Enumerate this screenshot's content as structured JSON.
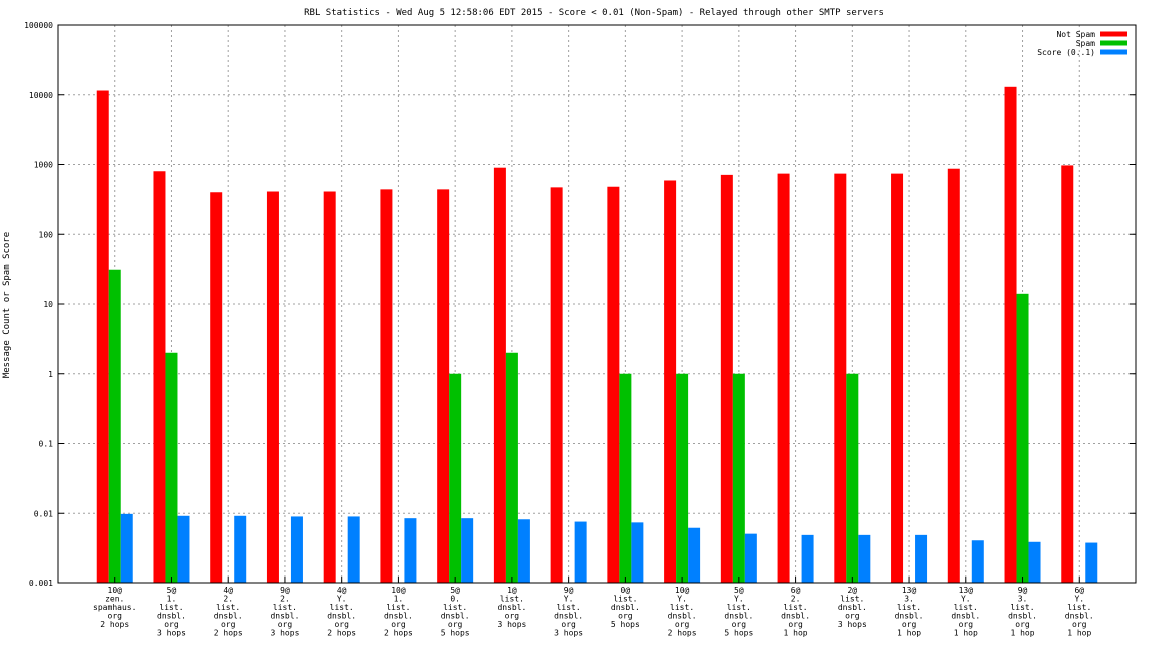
{
  "chart_data": {
    "type": "bar",
    "title": "RBL Statistics - Wed Aug  5 12:58:06 EDT 2015 - Score < 0.01 (Non-Spam) - Relayed through other SMTP servers",
    "xlabel": "",
    "ylabel": "Message Count or Spam Score",
    "yscale": "log",
    "ylim": [
      0.001,
      100000
    ],
    "yticks": [
      "0.001",
      "0.01",
      "0.1",
      "1",
      "10",
      "100",
      "1000",
      "10000",
      "100000"
    ],
    "grid": true,
    "legend_position": "top-right",
    "categories": [
      [
        "10@",
        "zen.",
        "spamhaus.",
        "org",
        "2 hops"
      ],
      [
        "5@",
        "1.",
        "list.",
        "dnsbl.",
        "org",
        "3 hops"
      ],
      [
        "4@",
        "2.",
        "list.",
        "dnsbl.",
        "org",
        "2 hops"
      ],
      [
        "9@",
        "2.",
        "list.",
        "dnsbl.",
        "org",
        "3 hops"
      ],
      [
        "4@",
        "Y.",
        "list.",
        "dnsbl.",
        "org",
        "2 hops"
      ],
      [
        "10@",
        "1.",
        "list.",
        "dnsbl.",
        "org",
        "2 hops"
      ],
      [
        "5@",
        "0.",
        "list.",
        "dnsbl.",
        "org",
        "5 hops"
      ],
      [
        "1@",
        "list.",
        "dnsbl.",
        "org",
        "3 hops"
      ],
      [
        "9@",
        "Y.",
        "list.",
        "dnsbl.",
        "org",
        "3 hops"
      ],
      [
        "0@",
        "list.",
        "dnsbl.",
        "org",
        "5 hops"
      ],
      [
        "10@",
        "Y.",
        "list.",
        "dnsbl.",
        "org",
        "2 hops"
      ],
      [
        "5@",
        "Y.",
        "list.",
        "dnsbl.",
        "org",
        "5 hops"
      ],
      [
        "6@",
        "2.",
        "list.",
        "dnsbl.",
        "org",
        "1 hop"
      ],
      [
        "2@",
        "list.",
        "dnsbl.",
        "org",
        "3 hops"
      ],
      [
        "13@",
        "3.",
        "list.",
        "dnsbl.",
        "org",
        "1 hop"
      ],
      [
        "13@",
        "Y.",
        "list.",
        "dnsbl.",
        "org",
        "1 hop"
      ],
      [
        "9@",
        "3.",
        "list.",
        "dnsbl.",
        "org",
        "1 hop"
      ],
      [
        "6@",
        "Y.",
        "list.",
        "dnsbl.",
        "org",
        "1 hop"
      ]
    ],
    "series": [
      {
        "name": "Not Spam",
        "color": "#ff0000",
        "values": [
          11500,
          800,
          400,
          410,
          410,
          440,
          440,
          900,
          470,
          480,
          590,
          710,
          740,
          740,
          740,
          870,
          13000,
          970
        ]
      },
      {
        "name": "Spam",
        "color": "#00c000",
        "values": [
          31,
          2,
          null,
          null,
          null,
          null,
          1,
          2,
          null,
          1,
          1,
          1,
          null,
          1,
          null,
          null,
          14,
          null
        ]
      },
      {
        "name": "Score (0..1)",
        "color": "#0080ff",
        "values": [
          0.0098,
          0.0092,
          0.0092,
          0.009,
          0.009,
          0.0085,
          0.0085,
          0.0082,
          0.0076,
          0.0074,
          0.0062,
          0.0051,
          0.0049,
          0.0049,
          0.0049,
          0.0041,
          0.0039,
          0.0038
        ]
      }
    ]
  }
}
